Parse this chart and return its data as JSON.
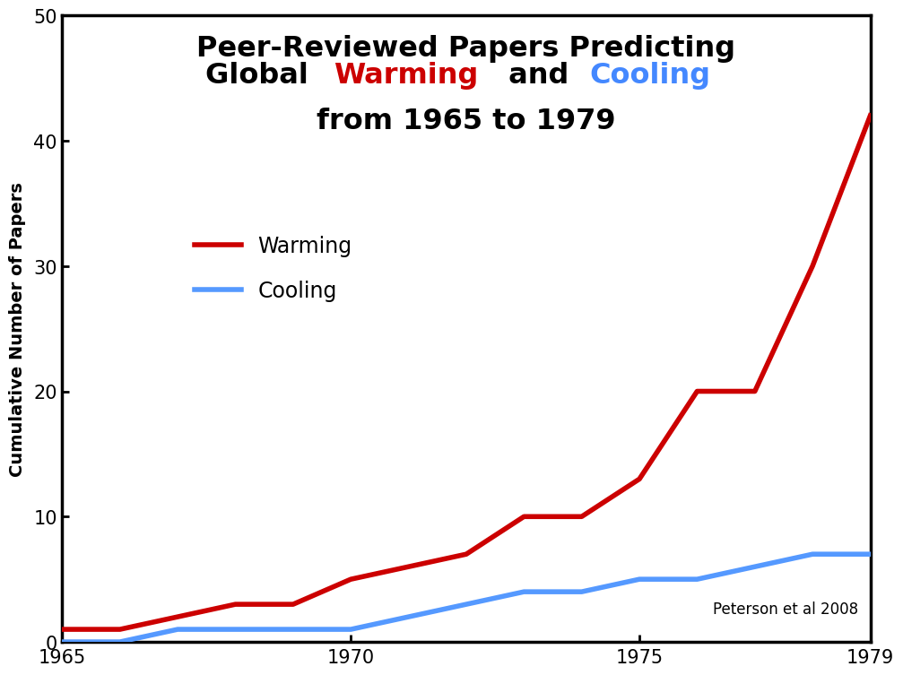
{
  "title_line1": "Peer-Reviewed Papers Predicting",
  "title_line2_parts": [
    "Global ",
    "Warming",
    " and ",
    "Cooling"
  ],
  "title_line2_colors": [
    "black",
    "#cc0000",
    "black",
    "#4488ff"
  ],
  "title_line3": "from 1965 to 1979",
  "ylabel": "Cumulative Number of Papers",
  "citation": "Peterson et al 2008",
  "warming_years": [
    1965,
    1966,
    1967,
    1968,
    1969,
    1970,
    1971,
    1972,
    1973,
    1974,
    1975,
    1976,
    1977,
    1978,
    1979
  ],
  "warming_values": [
    1,
    1,
    2,
    3,
    3,
    5,
    6,
    7,
    10,
    10,
    13,
    20,
    20,
    30,
    42
  ],
  "cooling_years": [
    1965,
    1966,
    1967,
    1968,
    1969,
    1970,
    1971,
    1972,
    1973,
    1974,
    1975,
    1976,
    1977,
    1978,
    1979
  ],
  "cooling_values": [
    0,
    0,
    1,
    1,
    1,
    1,
    2,
    3,
    4,
    4,
    5,
    5,
    6,
    7,
    7
  ],
  "warming_color": "#cc0000",
  "cooling_color": "#5599ff",
  "line_width": 4.0,
  "xlim": [
    1965,
    1979
  ],
  "ylim": [
    0,
    50
  ],
  "yticks": [
    0,
    10,
    20,
    30,
    40,
    50
  ],
  "xticks": [
    1965,
    1970,
    1975,
    1979
  ],
  "legend_warming": "Warming",
  "legend_cooling": "Cooling",
  "background_color": "#ffffff",
  "title_fontsize": 23,
  "axis_fontsize": 14,
  "legend_fontsize": 17,
  "tick_fontsize": 15
}
